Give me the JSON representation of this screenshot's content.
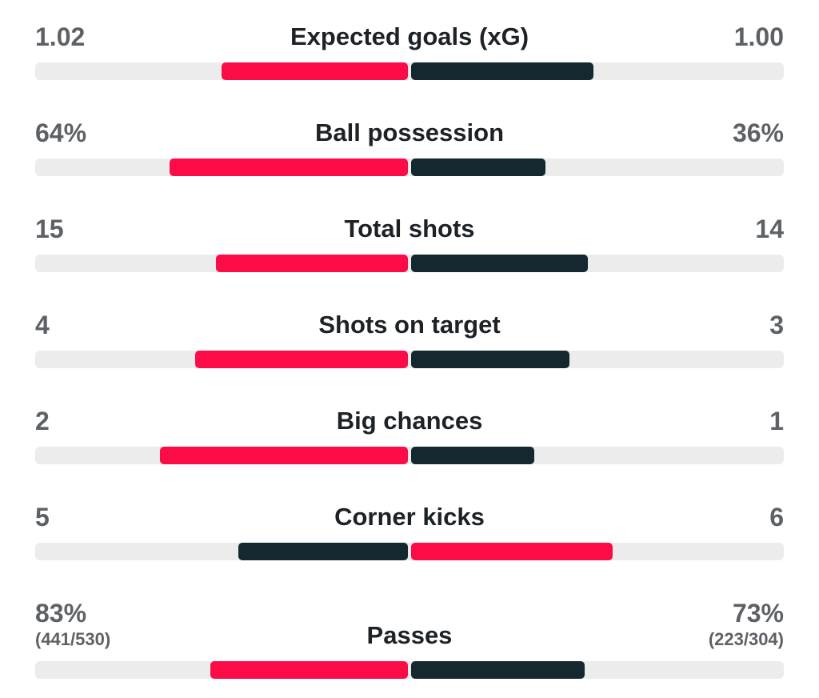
{
  "colors": {
    "home": "#fb0c46",
    "away": "#15282f",
    "track": "#ececec",
    "value_text": "#5d6166",
    "label_text": "#1c2226"
  },
  "stats": [
    {
      "label": "Expected goals (xG)",
      "home": "1.02",
      "away": "1.00",
      "home_fill": 0.5,
      "away_fill": 0.49,
      "home_color": "home",
      "away_color": "away"
    },
    {
      "label": "Ball possession",
      "home": "64%",
      "away": "36%",
      "home_fill": 0.64,
      "away_fill": 0.36,
      "home_color": "home",
      "away_color": "away"
    },
    {
      "label": "Total shots",
      "home": "15",
      "away": "14",
      "home_fill": 0.515,
      "away_fill": 0.475,
      "home_color": "home",
      "away_color": "away"
    },
    {
      "label": "Shots on target",
      "home": "4",
      "away": "3",
      "home_fill": 0.57,
      "away_fill": 0.425,
      "home_color": "home",
      "away_color": "away"
    },
    {
      "label": "Big chances",
      "home": "2",
      "away": "1",
      "home_fill": 0.665,
      "away_fill": 0.33,
      "home_color": "home",
      "away_color": "away"
    },
    {
      "label": "Corner kicks",
      "home": "5",
      "away": "6",
      "home_fill": 0.455,
      "away_fill": 0.54,
      "home_color": "away",
      "away_color": "home"
    },
    {
      "label": "Passes",
      "home": "83%",
      "away": "73%",
      "home_sub": "(441/530)",
      "away_sub": "(223/304)",
      "home_fill": 0.53,
      "away_fill": 0.465,
      "home_color": "home",
      "away_color": "away"
    }
  ]
}
